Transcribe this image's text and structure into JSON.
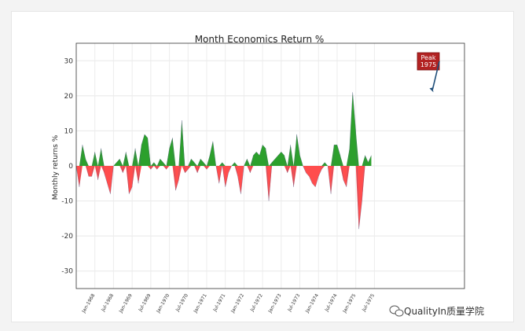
{
  "watermark": {
    "text": "QualityIn质量学院",
    "icon": "wechat-icon"
  },
  "chart_data": {
    "type": "area",
    "title": "Month Economics Return %",
    "xlabel": "",
    "ylabel": "Monthly returns %",
    "ylim": [
      -35,
      35
    ],
    "yticks": [
      30,
      20,
      10,
      0,
      -10,
      -20,
      -30
    ],
    "xlim": [
      0,
      125
    ],
    "grid": true,
    "colors": {
      "positive": "#2ca02c",
      "negative": "#ff4d4d",
      "annotation_box": "#b22222",
      "arrow": "#1f4e79"
    },
    "annotation": {
      "text": [
        "Peak",
        "1975"
      ],
      "x": 115,
      "y": 21
    },
    "xticks": [
      {
        "x": 6,
        "label": "Jan-1968"
      },
      {
        "x": 12,
        "label": "Jul-1968"
      },
      {
        "x": 18,
        "label": "Jan-1969"
      },
      {
        "x": 24,
        "label": "Jul-1969"
      },
      {
        "x": 30,
        "label": "Jan-1970"
      },
      {
        "x": 36,
        "label": "Jul-1970"
      },
      {
        "x": 42,
        "label": "Jan-1971"
      },
      {
        "x": 48,
        "label": "Jul-1971"
      },
      {
        "x": 54,
        "label": "Jan-1972"
      },
      {
        "x": 60,
        "label": "Jul-1972"
      },
      {
        "x": 66,
        "label": "Jan-1973"
      },
      {
        "x": 72,
        "label": "Jul-1973"
      },
      {
        "x": 78,
        "label": "Jan-1974"
      },
      {
        "x": 84,
        "label": "Jul-1974"
      },
      {
        "x": 90,
        "label": "Jan-1975"
      },
      {
        "x": 96,
        "label": "Jul-1975"
      }
    ],
    "values": [
      0,
      -6,
      6,
      2,
      -3,
      -3,
      4,
      -4,
      5,
      -2,
      -5,
      -8,
      0,
      1,
      2,
      -2,
      4,
      -8,
      -6,
      5,
      -5,
      6,
      9,
      8,
      -1,
      1,
      -1,
      2,
      1,
      -1,
      5,
      8,
      -7,
      -4,
      13,
      -2,
      -1,
      2,
      1,
      -2,
      2,
      1,
      -1,
      3,
      7,
      0,
      -5,
      1,
      -6,
      -2,
      0,
      1,
      -3,
      -8,
      0,
      2,
      -2,
      3,
      4,
      3,
      6,
      5,
      -10,
      1,
      2,
      3,
      4,
      3,
      -2,
      6,
      -6,
      9,
      3,
      0,
      -2,
      -3,
      -5,
      -6,
      -3,
      -1,
      1,
      0,
      -8,
      6,
      6,
      3,
      -4,
      -6,
      5,
      21,
      10,
      -18,
      -10,
      3,
      1,
      3
    ]
  }
}
